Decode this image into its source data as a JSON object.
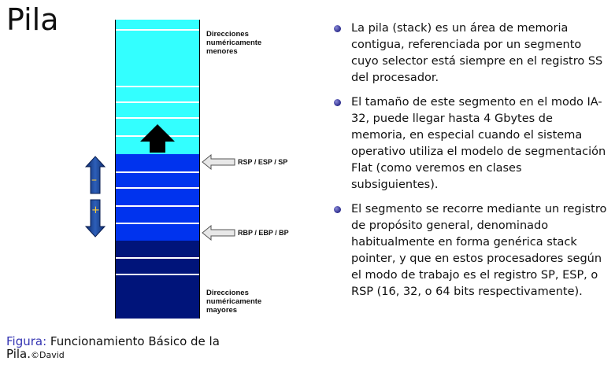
{
  "title": "Pila",
  "figure": {
    "top_label": [
      "Direcciones",
      "numéricamente",
      "menores"
    ],
    "bottom_label": [
      "Direcciones",
      "numéricamente",
      "mayores"
    ],
    "pointers": {
      "stack_pointer": "RSP / ESP / SP",
      "base_pointer": "RBP / EBP / BP"
    },
    "minus_sign": "–",
    "plus_sign": "+",
    "colors": {
      "free_region": "#33ffff",
      "used_region": "#0033ee",
      "old_region": "#00147a",
      "arrow": "#000000",
      "side_arrow": "#1a3d8c"
    }
  },
  "caption": {
    "prefix": "Figura:",
    "text": " Funcionamiento Básico de la Pila.",
    "copyright": "©David"
  },
  "bullets": [
    "La pila (stack) es un área de memoria contigua, referenciada por un segmento cuyo selector está siempre en el registro SS del procesador.",
    "El tamaño de este segmento en el modo IA-32, puede llegar hasta 4 Gbytes de memoria, en especial cuando el sistema operativo utiliza el modelo de segmentación Flat (como veremos en clases subsiguientes).",
    "El segmento se recorre mediante un registro de propósito general, denominado habitualmente en forma genérica stack pointer, y que en estos procesadores según el modo de trabajo es el registro SP, ESP, o RSP (16, 32, o 64 bits respectivamente)."
  ]
}
